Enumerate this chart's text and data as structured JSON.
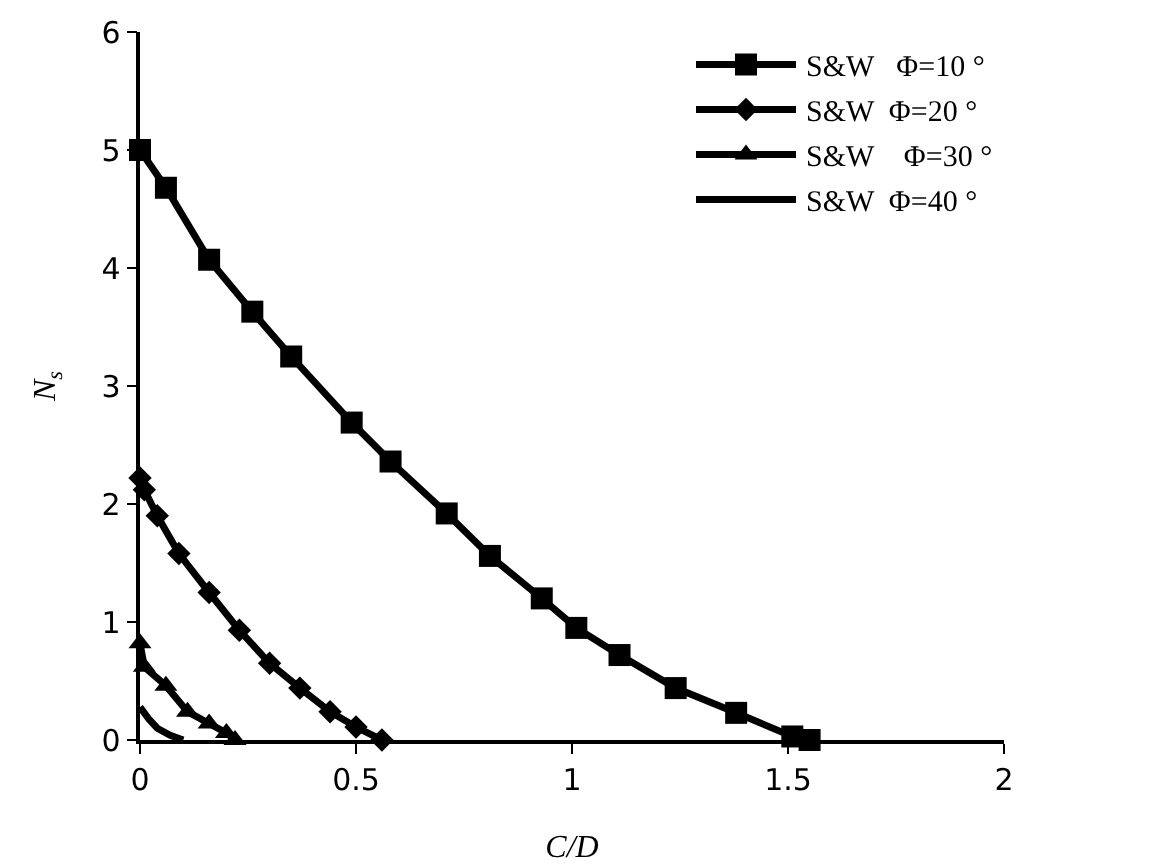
{
  "chart_data": {
    "type": "line",
    "xlabel": "C/D",
    "ylabel": "N$_{s}$",
    "xlim": [
      0,
      2
    ],
    "ylim": [
      0,
      6
    ],
    "xticks": [
      0,
      0.5,
      1,
      1.5,
      2
    ],
    "yticks": [
      0,
      1,
      2,
      3,
      4,
      5,
      6
    ],
    "grid": false,
    "legend": "top right",
    "line_style": "solid",
    "series": [
      {
        "name": "S&W   Φ=10 °",
        "color": "#000000",
        "marker": "square",
        "x": [
          0,
          0.06,
          0.16,
          0.26,
          0.35,
          0.49,
          0.58,
          0.71,
          0.81,
          0.93,
          1.01,
          1.11,
          1.24,
          1.38,
          1.51,
          1.55
        ],
        "values": [
          5,
          4.68,
          4.07,
          3.63,
          3.25,
          2.69,
          2.36,
          1.92,
          1.56,
          1.2,
          0.95,
          0.72,
          0.44,
          0.23,
          0.03,
          0
        ]
      },
      {
        "name": "S&W  Φ=20 °",
        "color": "#000000",
        "marker": "diamond",
        "x": [
          0,
          0.01,
          0.04,
          0.09,
          0.16,
          0.23,
          0.3,
          0.37,
          0.44,
          0.5,
          0.56
        ],
        "values": [
          2.22,
          2.12,
          1.9,
          1.58,
          1.25,
          0.93,
          0.65,
          0.44,
          0.24,
          0.11,
          0
        ]
      },
      {
        "name": "S&W    Φ=30 °",
        "color": "#000000",
        "marker": "triangle",
        "x": [
          0,
          0.01,
          0.06,
          0.11,
          0.16,
          0.2,
          0.22
        ],
        "values": [
          0.82,
          0.62,
          0.46,
          0.24,
          0.14,
          0.06,
          0
        ]
      },
      {
        "name": "S&W  Φ=40 °",
        "color": "#000000",
        "marker": "none",
        "x": [
          0,
          0.02,
          0.04,
          0.07,
          0.1
        ],
        "values": [
          0.28,
          0.18,
          0.1,
          0.04,
          0
        ]
      }
    ]
  }
}
